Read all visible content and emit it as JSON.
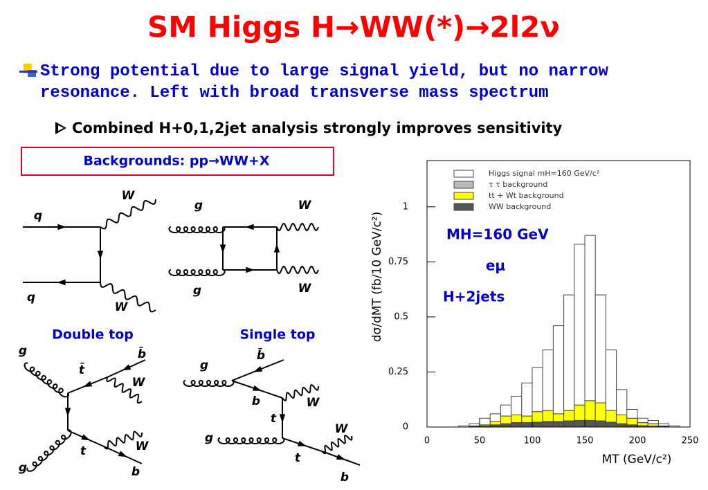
{
  "slide": {
    "title": "SM Higgs H→WW(*)→2l2ν",
    "bullet": "Strong potential due to large signal yield, but no narrow resonance. Left with broad transverse mass spectrum",
    "sub_bullet": "Combined H+0,1,2jet analysis strongly improves sensitivity",
    "box": "Backgrounds: pp→WW+X"
  },
  "diagrams": [
    {
      "labels": [
        "q",
        "q",
        "W",
        "W"
      ]
    },
    {
      "labels": [
        "g",
        "g",
        "W",
        "W"
      ]
    },
    {
      "title": "Double top",
      "labels": [
        "g",
        "g",
        "t̄",
        "b̄",
        "W",
        "t",
        "W",
        "b"
      ]
    },
    {
      "title": "Single top",
      "labels": [
        "g",
        "b̄",
        "b",
        "W",
        "t",
        "g",
        "t",
        "W",
        "b"
      ]
    }
  ],
  "chart_data": {
    "type": "stacked_histogram",
    "xlabel": "MT (GeV/c²)",
    "ylabel": "dσ/dMT (fb/10 GeV/c²)",
    "annotations": [
      "MH=160 GeV",
      "eμ",
      "H+2jets"
    ],
    "bins": [
      0,
      10,
      20,
      30,
      40,
      50,
      60,
      70,
      80,
      90,
      100,
      110,
      120,
      130,
      140,
      150,
      160,
      170,
      180,
      190,
      200,
      210,
      220,
      230,
      240,
      250
    ],
    "series": [
      {
        "name": "WW background",
        "color": "#555555",
        "values": [
          0,
          0,
          0,
          0,
          0.002,
          0.005,
          0.01,
          0.015,
          0.02,
          0.02,
          0.022,
          0.025,
          0.025,
          0.028,
          0.03,
          0.03,
          0.028,
          0.022,
          0.015,
          0.01,
          0.006,
          0.004,
          0.002,
          0,
          0
        ]
      },
      {
        "name": "τ τ background",
        "color": "#bbbbbb",
        "values": [
          0,
          0,
          0,
          0,
          0,
          0,
          0,
          0,
          0,
          0,
          0,
          0,
          0,
          0,
          0,
          0,
          0,
          0,
          0,
          0,
          0,
          0,
          0,
          0,
          0
        ]
      },
      {
        "name": "tt + Wt background",
        "color": "#ffff00",
        "values": [
          0,
          0,
          0,
          0,
          0.003,
          0.005,
          0.015,
          0.035,
          0.035,
          0.03,
          0.048,
          0.05,
          0.035,
          0.047,
          0.07,
          0.09,
          0.082,
          0.053,
          0.04,
          0.03,
          0.014,
          0.011,
          0.003,
          0,
          0
        ]
      },
      {
        "name": "Higgs signal mH=160 GeV/c²",
        "color": "#ffffff",
        "values": [
          0,
          0,
          0,
          0.005,
          0.01,
          0.03,
          0.035,
          0.05,
          0.085,
          0.15,
          0.2,
          0.275,
          0.4,
          0.525,
          0.73,
          0.75,
          0.49,
          0.275,
          0.115,
          0.04,
          0.02,
          0.015,
          0.01,
          0.005,
          0
        ]
      }
    ],
    "xlim": [
      0,
      250
    ],
    "xticks": [
      0,
      50,
      100,
      150,
      200,
      250
    ],
    "ylim": [
      0,
      1.21
    ],
    "yticks": [
      0,
      0.25,
      0.5,
      0.75,
      1
    ]
  }
}
